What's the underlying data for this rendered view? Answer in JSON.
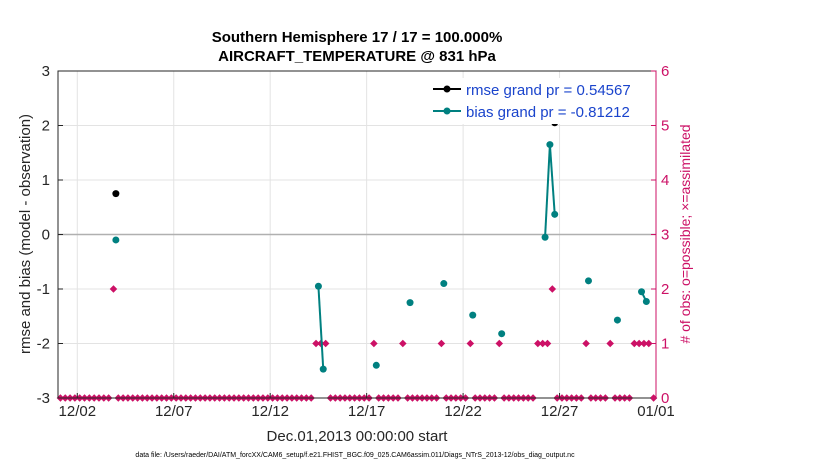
{
  "chart_data": {
    "type": "line",
    "title": "Southern Hemisphere 17 / 17 = 100.000%",
    "subtitle": "AIRCRAFT_TEMPERATURE @ 831 hPa",
    "xlabel": "Dec.01,2013 00:00:00 start",
    "ylabel": "rmse and bias (model - observation)",
    "y2label": "# of obs: o=possible; ×=assimilated",
    "xlim": [
      0.5,
      31.5
    ],
    "ylim": [
      -3,
      3
    ],
    "y2lim": [
      0,
      6
    ],
    "x_ticks": [
      1.5,
      6.5,
      11.5,
      16.5,
      21.5,
      26.5,
      31.5
    ],
    "x_tick_labels": [
      "12/02",
      "12/07",
      "12/12",
      "12/17",
      "12/22",
      "12/27",
      "01/01"
    ],
    "y_ticks": [
      -3,
      -2,
      -1,
      0,
      1,
      2,
      3
    ],
    "y2_ticks": [
      0,
      1,
      2,
      3,
      4,
      5,
      6
    ],
    "grid": true,
    "legend_position": "top-right",
    "footer": "data file: /Users/raeder/DAI/ATM_forcXX/CAM6_setup/f.e21.FHIST_BGC.f09_025.CAM6assim.011/Diags_NTrS_2013-12/obs_diag_output.nc",
    "colors": {
      "rmse": "#000000",
      "bias": "#008080",
      "obs": "#cc1166",
      "zero_line": "#b0b0b0"
    },
    "series": [
      {
        "name": "rmse grand pr = 0.54567",
        "axis": "left",
        "x": [
          3.5,
          26.25
        ],
        "y": [
          0.75,
          2.05
        ]
      },
      {
        "name": "bias grand pr = -0.81212",
        "axis": "left",
        "x": [
          3.5,
          14.0,
          14.25,
          17.0,
          18.75,
          20.5,
          22.0,
          23.5,
          25.75,
          26.0,
          26.25,
          28.0,
          29.5,
          30.75,
          31.0
        ],
        "y": [
          -0.1,
          -0.95,
          -2.47,
          -2.4,
          -1.25,
          -0.9,
          -1.48,
          -1.82,
          -0.05,
          1.65,
          0.37,
          -0.85,
          -1.57,
          -1.05,
          -1.23
        ]
      }
    ],
    "obs_counts": {
      "x": [
        0.625,
        0.875,
        1.125,
        1.375,
        1.625,
        1.875,
        2.125,
        2.375,
        2.625,
        2.875,
        3.125,
        3.375,
        3.625,
        3.875,
        4.125,
        4.375,
        4.625,
        4.875,
        5.125,
        5.375,
        5.625,
        5.875,
        6.125,
        6.375,
        6.625,
        6.875,
        7.125,
        7.375,
        7.625,
        7.875,
        8.125,
        8.375,
        8.625,
        8.875,
        9.125,
        9.375,
        9.625,
        9.875,
        10.125,
        10.375,
        10.625,
        10.875,
        11.125,
        11.375,
        11.625,
        11.875,
        12.125,
        12.375,
        12.625,
        12.875,
        13.125,
        13.375,
        13.625,
        13.875,
        14.125,
        14.375,
        14.625,
        14.875,
        15.125,
        15.375,
        15.625,
        15.875,
        16.125,
        16.375,
        16.625,
        16.875,
        17.125,
        17.375,
        17.625,
        17.875,
        18.125,
        18.375,
        18.625,
        18.875,
        19.125,
        19.375,
        19.625,
        19.875,
        20.125,
        20.375,
        20.625,
        20.875,
        21.125,
        21.375,
        21.625,
        21.875,
        22.125,
        22.375,
        22.625,
        22.875,
        23.125,
        23.375,
        23.625,
        23.875,
        24.125,
        24.375,
        24.625,
        24.875,
        25.125,
        25.375,
        25.625,
        25.875,
        26.125,
        26.375,
        26.625,
        26.875,
        27.125,
        27.375,
        27.625,
        27.875,
        28.125,
        28.375,
        28.625,
        28.875,
        29.125,
        29.375,
        29.625,
        29.875,
        30.125,
        30.375,
        30.625,
        30.875,
        31.125,
        31.375
      ],
      "y": [
        0,
        0,
        0,
        0,
        0,
        0,
        0,
        0,
        0,
        0,
        0,
        2,
        0,
        0,
        0,
        0,
        0,
        0,
        0,
        0,
        0,
        0,
        0,
        0,
        0,
        0,
        0,
        0,
        0,
        0,
        0,
        0,
        0,
        0,
        0,
        0,
        0,
        0,
        0,
        0,
        0,
        0,
        0,
        0,
        0,
        0,
        0,
        0,
        0,
        0,
        0,
        0,
        0,
        1,
        1,
        1,
        0,
        0,
        0,
        0,
        0,
        0,
        0,
        0,
        0,
        1,
        0,
        0,
        0,
        0,
        0,
        1,
        0,
        0,
        0,
        0,
        0,
        0,
        0,
        1,
        0,
        0,
        0,
        0,
        0,
        1,
        0,
        0,
        0,
        0,
        0,
        1,
        0,
        0,
        0,
        0,
        0,
        0,
        0,
        1,
        1,
        1,
        2,
        0,
        0,
        0,
        0,
        0,
        0,
        1,
        0,
        0,
        0,
        0,
        1,
        0,
        0,
        0,
        0,
        1,
        1,
        1,
        1,
        0
      ]
    }
  }
}
